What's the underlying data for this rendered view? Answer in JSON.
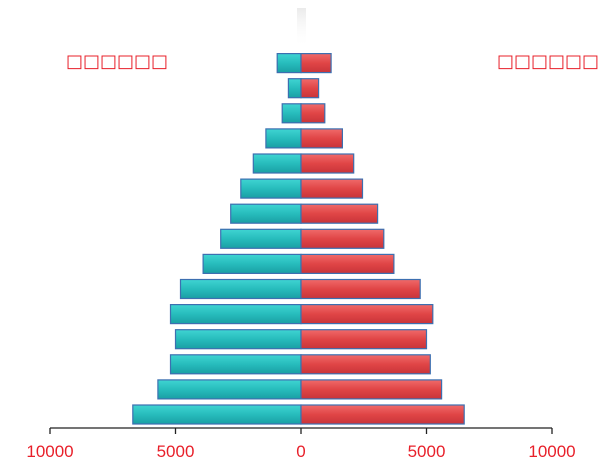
{
  "chart_data": {
    "type": "bar",
    "orientation": "horizontal-mirrored",
    "title": "",
    "xlabel": "",
    "ylabel": "",
    "xlim": [
      -10000,
      10000
    ],
    "x_ticks": [
      -10000,
      -5000,
      0,
      5000,
      10000
    ],
    "x_tick_labels": [
      "10000",
      "5000",
      "0",
      "5000",
      "10000"
    ],
    "grid": false,
    "legend": [
      "□□□□□□",
      "□□□□□□"
    ],
    "legend_placement": "top-left / top-right",
    "series": [
      {
        "side": "left",
        "color": "#2bbfbf",
        "values": [
          6700,
          5700,
          5200,
          5000,
          5200,
          4800,
          3900,
          3200,
          2800,
          2400,
          1900,
          1400,
          750,
          500,
          950
        ]
      },
      {
        "side": "right",
        "color": "#e24a4c",
        "values": [
          6500,
          5600,
          5150,
          5000,
          5250,
          4750,
          3700,
          3300,
          3050,
          2450,
          2100,
          1650,
          950,
          700,
          1200
        ]
      }
    ]
  }
}
